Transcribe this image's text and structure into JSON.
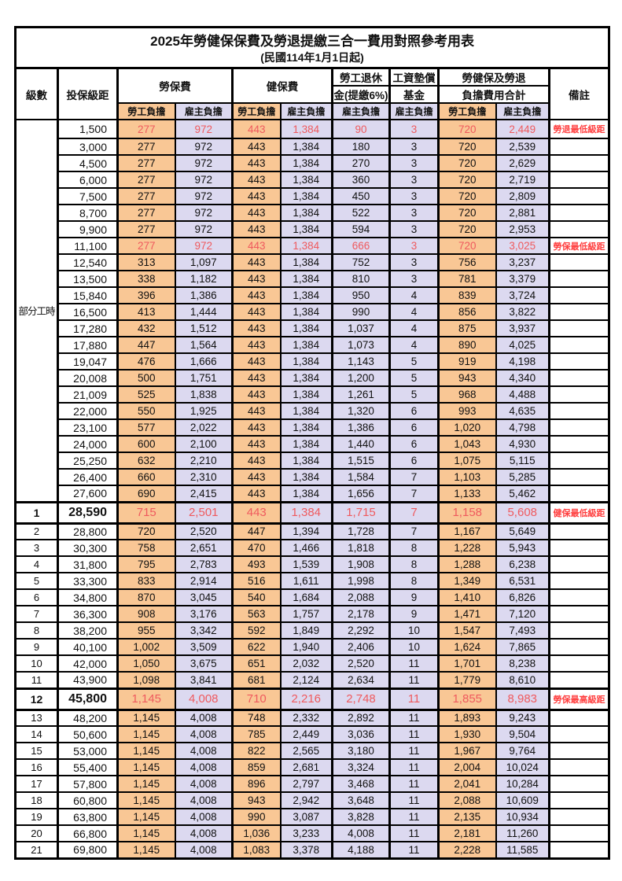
{
  "table": {
    "title": "2025年勞健保保費及勞退提繳三合一費用對照參考用表",
    "subtitle": "(民國114年1月1日起)",
    "header": {
      "level": "級數",
      "bracket": "投保級距",
      "labor_ins": "勞保費",
      "health_ins": "健保費",
      "pension_line1": "勞工退休",
      "pension_line2": "金(提繳6%)",
      "wage_fund_line1": "工資墊償",
      "wage_fund_line2": "基金",
      "total_line1": "勞健保及勞退",
      "total_line2": "負擔費用合計",
      "remark": "備註",
      "employee_label": "勞工負擔",
      "employer_label": "雇主負擔"
    },
    "part_time_label": "部分工時",
    "colors": {
      "employee_column_bg": "#f9c795",
      "employer_column_bg": "#dcd9f0",
      "highlight_value_text": "#ef5a5e",
      "remark_text": "#ff4040",
      "border": "#000000"
    },
    "rows": [
      {
        "level": "",
        "bracket": "1,500",
        "values": [
          "277",
          "972",
          "443",
          "1,384",
          "90",
          "3",
          "720",
          "2,449"
        ],
        "remark": "勞退最低級距",
        "highlight": true,
        "key": false
      },
      {
        "level": "",
        "bracket": "3,000",
        "values": [
          "277",
          "972",
          "443",
          "1,384",
          "180",
          "3",
          "720",
          "2,539"
        ],
        "remark": "",
        "highlight": false,
        "key": false
      },
      {
        "level": "",
        "bracket": "4,500",
        "values": [
          "277",
          "972",
          "443",
          "1,384",
          "270",
          "3",
          "720",
          "2,629"
        ],
        "remark": "",
        "highlight": false,
        "key": false
      },
      {
        "level": "",
        "bracket": "6,000",
        "values": [
          "277",
          "972",
          "443",
          "1,384",
          "360",
          "3",
          "720",
          "2,719"
        ],
        "remark": "",
        "highlight": false,
        "key": false
      },
      {
        "level": "",
        "bracket": "7,500",
        "values": [
          "277",
          "972",
          "443",
          "1,384",
          "450",
          "3",
          "720",
          "2,809"
        ],
        "remark": "",
        "highlight": false,
        "key": false
      },
      {
        "level": "",
        "bracket": "8,700",
        "values": [
          "277",
          "972",
          "443",
          "1,384",
          "522",
          "3",
          "720",
          "2,881"
        ],
        "remark": "",
        "highlight": false,
        "key": false
      },
      {
        "level": "",
        "bracket": "9,900",
        "values": [
          "277",
          "972",
          "443",
          "1,384",
          "594",
          "3",
          "720",
          "2,953"
        ],
        "remark": "",
        "highlight": false,
        "key": false
      },
      {
        "level": "",
        "bracket": "11,100",
        "values": [
          "277",
          "972",
          "443",
          "1,384",
          "666",
          "3",
          "720",
          "3,025"
        ],
        "remark": "勞保最低級距",
        "highlight": true,
        "key": false
      },
      {
        "level": "",
        "bracket": "12,540",
        "values": [
          "313",
          "1,097",
          "443",
          "1,384",
          "752",
          "3",
          "756",
          "3,237"
        ],
        "remark": "",
        "highlight": false,
        "key": false
      },
      {
        "level": "",
        "bracket": "13,500",
        "values": [
          "338",
          "1,182",
          "443",
          "1,384",
          "810",
          "3",
          "781",
          "3,379"
        ],
        "remark": "",
        "highlight": false,
        "key": false
      },
      {
        "level": "",
        "bracket": "15,840",
        "values": [
          "396",
          "1,386",
          "443",
          "1,384",
          "950",
          "4",
          "839",
          "3,724"
        ],
        "remark": "",
        "highlight": false,
        "key": false
      },
      {
        "level": "",
        "bracket": "16,500",
        "values": [
          "413",
          "1,444",
          "443",
          "1,384",
          "990",
          "4",
          "856",
          "3,822"
        ],
        "remark": "",
        "highlight": false,
        "key": false
      },
      {
        "level": "",
        "bracket": "17,280",
        "values": [
          "432",
          "1,512",
          "443",
          "1,384",
          "1,037",
          "4",
          "875",
          "3,937"
        ],
        "remark": "",
        "highlight": false,
        "key": false
      },
      {
        "level": "",
        "bracket": "17,880",
        "values": [
          "447",
          "1,564",
          "443",
          "1,384",
          "1,073",
          "4",
          "890",
          "4,025"
        ],
        "remark": "",
        "highlight": false,
        "key": false
      },
      {
        "level": "",
        "bracket": "19,047",
        "values": [
          "476",
          "1,666",
          "443",
          "1,384",
          "1,143",
          "5",
          "919",
          "4,198"
        ],
        "remark": "",
        "highlight": false,
        "key": false
      },
      {
        "level": "",
        "bracket": "20,008",
        "values": [
          "500",
          "1,751",
          "443",
          "1,384",
          "1,200",
          "5",
          "943",
          "4,340"
        ],
        "remark": "",
        "highlight": false,
        "key": false
      },
      {
        "level": "",
        "bracket": "21,009",
        "values": [
          "525",
          "1,838",
          "443",
          "1,384",
          "1,261",
          "5",
          "968",
          "4,488"
        ],
        "remark": "",
        "highlight": false,
        "key": false
      },
      {
        "level": "",
        "bracket": "22,000",
        "values": [
          "550",
          "1,925",
          "443",
          "1,384",
          "1,320",
          "6",
          "993",
          "4,635"
        ],
        "remark": "",
        "highlight": false,
        "key": false
      },
      {
        "level": "",
        "bracket": "23,100",
        "values": [
          "577",
          "2,022",
          "443",
          "1,384",
          "1,386",
          "6",
          "1,020",
          "4,798"
        ],
        "remark": "",
        "highlight": false,
        "key": false
      },
      {
        "level": "",
        "bracket": "24,000",
        "values": [
          "600",
          "2,100",
          "443",
          "1,384",
          "1,440",
          "6",
          "1,043",
          "4,930"
        ],
        "remark": "",
        "highlight": false,
        "key": false
      },
      {
        "level": "",
        "bracket": "25,250",
        "values": [
          "632",
          "2,210",
          "443",
          "1,384",
          "1,515",
          "6",
          "1,075",
          "5,115"
        ],
        "remark": "",
        "highlight": false,
        "key": false
      },
      {
        "level": "",
        "bracket": "26,400",
        "values": [
          "660",
          "2,310",
          "443",
          "1,384",
          "1,584",
          "7",
          "1,103",
          "5,285"
        ],
        "remark": "",
        "highlight": false,
        "key": false
      },
      {
        "level": "",
        "bracket": "27,600",
        "values": [
          "690",
          "2,415",
          "443",
          "1,384",
          "1,656",
          "7",
          "1,133",
          "5,462"
        ],
        "remark": "",
        "highlight": false,
        "key": false
      },
      {
        "level": "1",
        "bracket": "28,590",
        "values": [
          "715",
          "2,501",
          "443",
          "1,384",
          "1,715",
          "7",
          "1,158",
          "5,608"
        ],
        "remark": "健保最低級距",
        "highlight": true,
        "key": true
      },
      {
        "level": "2",
        "bracket": "28,800",
        "values": [
          "720",
          "2,520",
          "447",
          "1,394",
          "1,728",
          "7",
          "1,167",
          "5,649"
        ],
        "remark": "",
        "highlight": false,
        "key": false
      },
      {
        "level": "3",
        "bracket": "30,300",
        "values": [
          "758",
          "2,651",
          "470",
          "1,466",
          "1,818",
          "8",
          "1,228",
          "5,943"
        ],
        "remark": "",
        "highlight": false,
        "key": false
      },
      {
        "level": "4",
        "bracket": "31,800",
        "values": [
          "795",
          "2,783",
          "493",
          "1,539",
          "1,908",
          "8",
          "1,288",
          "6,238"
        ],
        "remark": "",
        "highlight": false,
        "key": false
      },
      {
        "level": "5",
        "bracket": "33,300",
        "values": [
          "833",
          "2,914",
          "516",
          "1,611",
          "1,998",
          "8",
          "1,349",
          "6,531"
        ],
        "remark": "",
        "highlight": false,
        "key": false
      },
      {
        "level": "6",
        "bracket": "34,800",
        "values": [
          "870",
          "3,045",
          "540",
          "1,684",
          "2,088",
          "9",
          "1,410",
          "6,826"
        ],
        "remark": "",
        "highlight": false,
        "key": false
      },
      {
        "level": "7",
        "bracket": "36,300",
        "values": [
          "908",
          "3,176",
          "563",
          "1,757",
          "2,178",
          "9",
          "1,471",
          "7,120"
        ],
        "remark": "",
        "highlight": false,
        "key": false
      },
      {
        "level": "8",
        "bracket": "38,200",
        "values": [
          "955",
          "3,342",
          "592",
          "1,849",
          "2,292",
          "10",
          "1,547",
          "7,493"
        ],
        "remark": "",
        "highlight": false,
        "key": false
      },
      {
        "level": "9",
        "bracket": "40,100",
        "values": [
          "1,002",
          "3,509",
          "622",
          "1,940",
          "2,406",
          "10",
          "1,624",
          "7,865"
        ],
        "remark": "",
        "highlight": false,
        "key": false
      },
      {
        "level": "10",
        "bracket": "42,000",
        "values": [
          "1,050",
          "3,675",
          "651",
          "2,032",
          "2,520",
          "11",
          "1,701",
          "8,238"
        ],
        "remark": "",
        "highlight": false,
        "key": false
      },
      {
        "level": "11",
        "bracket": "43,900",
        "values": [
          "1,098",
          "3,841",
          "681",
          "2,124",
          "2,634",
          "11",
          "1,779",
          "8,610"
        ],
        "remark": "",
        "highlight": false,
        "key": false
      },
      {
        "level": "12",
        "bracket": "45,800",
        "values": [
          "1,145",
          "4,008",
          "710",
          "2,216",
          "2,748",
          "11",
          "1,855",
          "8,983"
        ],
        "remark": "勞保最高級距",
        "highlight": true,
        "key": true
      },
      {
        "level": "13",
        "bracket": "48,200",
        "values": [
          "1,145",
          "4,008",
          "748",
          "2,332",
          "2,892",
          "11",
          "1,893",
          "9,243"
        ],
        "remark": "",
        "highlight": false,
        "key": false
      },
      {
        "level": "14",
        "bracket": "50,600",
        "values": [
          "1,145",
          "4,008",
          "785",
          "2,449",
          "3,036",
          "11",
          "1,930",
          "9,504"
        ],
        "remark": "",
        "highlight": false,
        "key": false
      },
      {
        "level": "15",
        "bracket": "53,000",
        "values": [
          "1,145",
          "4,008",
          "822",
          "2,565",
          "3,180",
          "11",
          "1,967",
          "9,764"
        ],
        "remark": "",
        "highlight": false,
        "key": false
      },
      {
        "level": "16",
        "bracket": "55,400",
        "values": [
          "1,145",
          "4,008",
          "859",
          "2,681",
          "3,324",
          "11",
          "2,004",
          "10,024"
        ],
        "remark": "",
        "highlight": false,
        "key": false
      },
      {
        "level": "17",
        "bracket": "57,800",
        "values": [
          "1,145",
          "4,008",
          "896",
          "2,797",
          "3,468",
          "11",
          "2,041",
          "10,284"
        ],
        "remark": "",
        "highlight": false,
        "key": false
      },
      {
        "level": "18",
        "bracket": "60,800",
        "values": [
          "1,145",
          "4,008",
          "943",
          "2,942",
          "3,648",
          "11",
          "2,088",
          "10,609"
        ],
        "remark": "",
        "highlight": false,
        "key": false
      },
      {
        "level": "19",
        "bracket": "63,800",
        "values": [
          "1,145",
          "4,008",
          "990",
          "3,087",
          "3,828",
          "11",
          "2,135",
          "10,934"
        ],
        "remark": "",
        "highlight": false,
        "key": false
      },
      {
        "level": "20",
        "bracket": "66,800",
        "values": [
          "1,145",
          "4,008",
          "1,036",
          "3,233",
          "4,008",
          "11",
          "2,181",
          "11,260"
        ],
        "remark": "",
        "highlight": false,
        "key": false
      },
      {
        "level": "21",
        "bracket": "69,800",
        "values": [
          "1,145",
          "4,008",
          "1,083",
          "3,378",
          "4,188",
          "11",
          "2,228",
          "11,585"
        ],
        "remark": "",
        "highlight": false,
        "key": false
      }
    ]
  }
}
